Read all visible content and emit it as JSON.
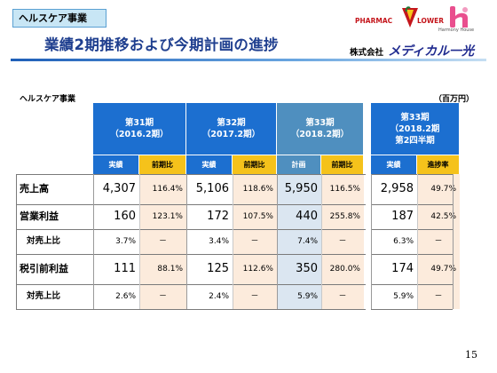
{
  "tag": "ヘルスケア事業",
  "title": "業績2期推移および今期計画の進捗",
  "logos": {
    "pharmac": "PHARMAC",
    "lower": "LOWER",
    "harmony": "Harmony House",
    "company_kk": "株式会社",
    "company_name": "メディカル一光"
  },
  "table": {
    "section_label": "ヘルスケア事業",
    "unit": "（百万円）",
    "periods": [
      {
        "line1": "第31期",
        "line2": "（2016.2期）",
        "line3": ""
      },
      {
        "line1": "第32期",
        "line2": "（2017.2期）",
        "line3": ""
      },
      {
        "line1": "第33期",
        "line2": "（2018.2期）",
        "line3": ""
      },
      {
        "line1": "第33期",
        "line2": "（2018.2期",
        "line3": "第2四半期"
      }
    ],
    "subheaders": [
      "実績",
      "前期比",
      "実績",
      "前期比",
      "計画",
      "前期比",
      "実績",
      "進捗率"
    ],
    "rows": [
      {
        "label": "売上高",
        "values": [
          "4,307",
          "116.4%",
          "5,106",
          "118.6%",
          "5,950",
          "116.5%",
          "2,958",
          "49.7%"
        ]
      },
      {
        "label": "営業利益",
        "values": [
          "160",
          "123.1%",
          "172",
          "107.5%",
          "440",
          "255.8%",
          "187",
          "42.5%"
        ]
      },
      {
        "label": "対売上比",
        "values": [
          "3.7%",
          "－",
          "3.4%",
          "－",
          "7.4%",
          "－",
          "6.3%",
          "－"
        ]
      },
      {
        "label": "税引前利益",
        "values": [
          "111",
          "88.1%",
          "125",
          "112.6%",
          "350",
          "280.0%",
          "174",
          "49.7%"
        ]
      },
      {
        "label": "対売上比",
        "values": [
          "2.6%",
          "－",
          "2.4%",
          "－",
          "5.9%",
          "－",
          "5.9%",
          "－"
        ]
      }
    ]
  },
  "page_number": "15",
  "colors": {
    "title_blue": "#1f3f8f",
    "header_blue": "#1c6fd0",
    "header_plan": "#4f8fbf",
    "subheader_yellow": "#f5c21b",
    "plan_column_fill": "#dbe6f1",
    "ratio_column_fill": "#fcebdc"
  }
}
